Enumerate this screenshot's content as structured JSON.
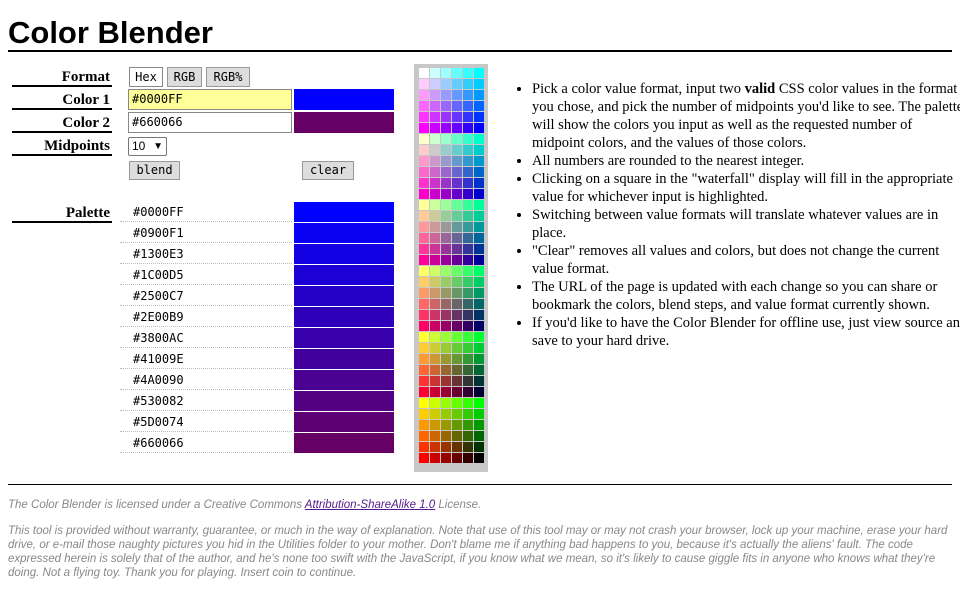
{
  "title": "Color Blender",
  "labels": {
    "format": "Format",
    "color1": "Color 1",
    "color2": "Color 2",
    "midpoints": "Midpoints",
    "palette": "Palette"
  },
  "format_buttons": [
    {
      "label": "Hex",
      "active": true
    },
    {
      "label": "RGB",
      "active": false
    },
    {
      "label": "RGB%",
      "active": false
    }
  ],
  "color1": {
    "value": "#0000FF",
    "swatch": "#0000FF"
  },
  "color2": {
    "value": "#660066",
    "swatch": "#660066"
  },
  "midpoints": {
    "selected": "10"
  },
  "buttons": {
    "blend": "blend",
    "clear": "clear"
  },
  "palette": [
    "#0000FF",
    "#0900F1",
    "#1300E3",
    "#1C00D5",
    "#2500C7",
    "#2E00B9",
    "#3800AC",
    "#41009E",
    "#4A0090",
    "#530082",
    "#5D0074",
    "#660066"
  ],
  "instructions": [
    {
      "pre": "Pick a color value format, input two ",
      "bold": "valid",
      "post": " CSS color values in the format you chose, and pick the number of midpoints you'd like to see. The palette will show the colors you input as well as the requested number of midpoint colors, and the values of those colors."
    },
    {
      "pre": "All numbers are rounded to the nearest integer.",
      "bold": "",
      "post": ""
    },
    {
      "pre": "Clicking on a square in the \"waterfall\" display will fill in the appropriate value for whichever input is highlighted.",
      "bold": "",
      "post": ""
    },
    {
      "pre": "Switching between value formats will translate whatever values are in place.",
      "bold": "",
      "post": ""
    },
    {
      "pre": "\"Clear\" removes all values and colors, but does not change the current value format.",
      "bold": "",
      "post": ""
    },
    {
      "pre": "The URL of the page is updated with each change so you can share or bookmark the colors, blend steps, and value format currently shown.",
      "bold": "",
      "post": ""
    },
    {
      "pre": "If you'd like to have the Color Blender for offline use, just view source and save to your hard drive.",
      "bold": "",
      "post": ""
    }
  ],
  "footer": {
    "license_pre": "The Color Blender is licensed under a Creative Commons ",
    "license_link": "Attribution-ShareAlike 1.0",
    "license_post": " License.",
    "disclaimer": "This tool is provided without warranty, guarantee, or much in the way of explanation. Note that use of this tool may or may not crash your browser, lock up your machine, erase your hard drive, or e-mail those naughty pictures you hid in the Utilities folder to your mother. Don't blame me if anything bad happens to you, because it's actually the aliens' fault. The code expressed herein is solely that of the author, and he's none too swift with the JavaScript, if you know what we mean, so it's likely to cause giggle fits in anyone who knows what they're doing. Not a flying toy. Thank you for playing. Insert coin to continue."
  }
}
